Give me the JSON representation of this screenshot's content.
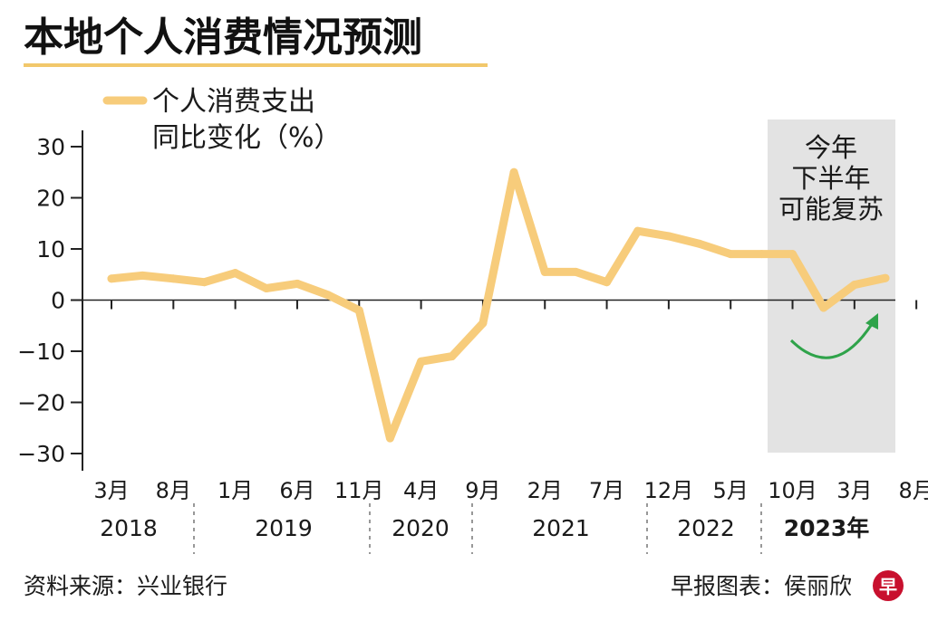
{
  "header": {
    "title": "本地个人消费情况预测"
  },
  "legend": {
    "line1": "个人消费支出",
    "line2": "同比变化（%）"
  },
  "annotation": {
    "lines": [
      "今年",
      "下半年",
      "可能复苏"
    ]
  },
  "footer": {
    "source": "资料来源：兴业银行",
    "credit": "早报图表：侯丽欣",
    "logo_char": "早"
  },
  "colors": {
    "line": "#F7CC7B",
    "axis": "#222222",
    "shade": "#E3E3E3",
    "arrow": "#2FA34A",
    "title_underline": "#F2C86B",
    "logo": "#C8102E"
  },
  "icons": {
    "arrow": "green-curved-arrow-icon",
    "logo": "zaobao-logo-icon"
  },
  "chart_data": {
    "type": "line",
    "title": "本地个人消费情况预测",
    "ylabel": "个人消费支出 同比变化（%）",
    "ylim": [
      -30,
      30
    ],
    "yticks": [
      "30",
      "20",
      "10",
      "0",
      "-10",
      "-20",
      "-30"
    ],
    "grid": false,
    "legend": "top-left",
    "month_ticks": [
      "3月",
      "8月",
      "1月",
      "6月",
      "11月",
      "4月",
      "9月",
      "2月",
      "7月",
      "12月",
      "5月",
      "10月",
      "3月",
      "8月"
    ],
    "years": [
      "2018",
      "2019",
      "2020",
      "2021",
      "2022",
      "2023年"
    ],
    "shaded_region": "2023",
    "series": [
      {
        "name": "个人消费支出 同比变化（%）",
        "values": [
          4.2,
          4.8,
          4.2,
          3.5,
          5.3,
          2.3,
          3.2,
          1.0,
          -2.0,
          -27.0,
          -12.0,
          -11.0,
          -4.5,
          25.0,
          5.5,
          5.5,
          3.5,
          13.5,
          12.5,
          11.0,
          9.0,
          9.0,
          9.0,
          -1.5,
          3.0,
          4.3
        ]
      }
    ]
  }
}
